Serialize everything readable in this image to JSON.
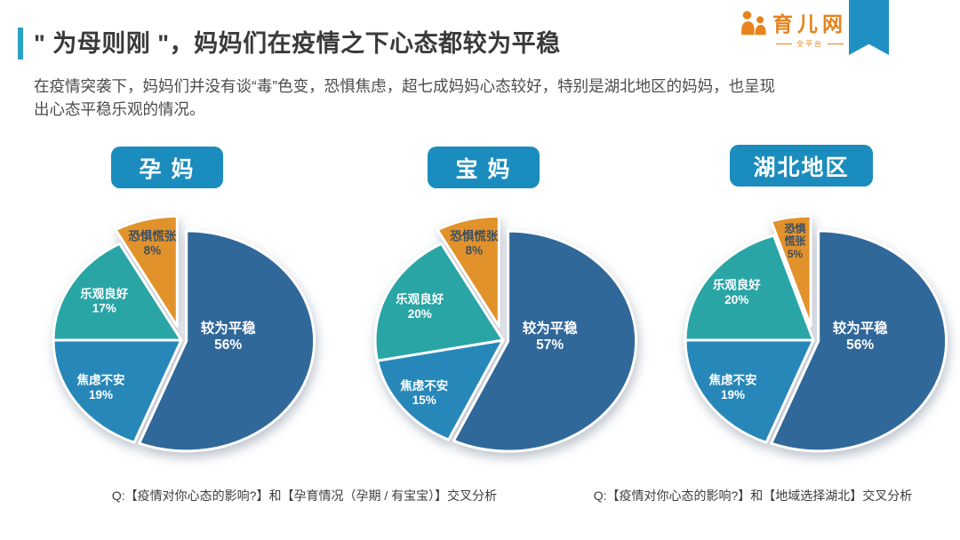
{
  "header": {
    "title": "\" 为母则刚 \"，妈妈们在疫情之下心态都较为平稳",
    "subtitle_line1": "在疫情突袭下，妈妈们并没有谈“毒”色变，恐惧焦虑，超七成妈妈心态较好，特别是湖北地区的妈妈，也呈现",
    "subtitle_line2": "出心态平稳乐观的情况。",
    "accent_color": "#2BA3C4",
    "title_color": "#3A3A3A"
  },
  "logo": {
    "brand": "育儿网",
    "tagline": "全平台",
    "brand_color": "#E8821C",
    "icon": "parent-child-icon"
  },
  "ribbon": {
    "color": "#2090C2"
  },
  "style": {
    "group_label_bg": "#1B8CBE",
    "slice_stroke": "#FFFFFF"
  },
  "chart_data": [
    {
      "type": "pie",
      "group_label": "孕 妈",
      "slices": [
        {
          "label": "较为平稳",
          "value": 56,
          "pct_text": "56%",
          "color": "#31689A",
          "label_color": "#FFFFFF",
          "label_lines": [
            "较为平稳",
            "56%"
          ],
          "label_r": 0.33,
          "label_angle": 82,
          "offset": 0.04
        },
        {
          "label": "焦虑不安",
          "value": 19,
          "pct_text": "19%",
          "color": "#2787B8",
          "label_color": "#FFFFFF",
          "label_lines": [
            "焦虑不安",
            "19%"
          ],
          "label_r": 0.76
        },
        {
          "label": "乐观良好",
          "value": 17,
          "pct_text": "17%",
          "color": "#29A5A6",
          "label_color": "#FFFFFF",
          "label_lines": [
            "乐观良好",
            "17%"
          ],
          "label_r": 0.7
        },
        {
          "label": "恐惧慌张",
          "value": 8,
          "pct_text": "8%",
          "color": "#E2922B",
          "label_color": "#3D4F63",
          "label_lines": [
            "恐惧慌张",
            "8%"
          ],
          "label_r": 0.78,
          "exploded": true,
          "offset": 0.13
        }
      ]
    },
    {
      "type": "pie",
      "group_label": "宝 妈",
      "slices": [
        {
          "label": "较为平稳",
          "value": 57,
          "pct_text": "57%",
          "color": "#31689A",
          "label_color": "#FFFFFF",
          "label_lines": [
            "较为平稳",
            "57%"
          ],
          "label_r": 0.33,
          "label_angle": 82,
          "offset": 0.04
        },
        {
          "label": "焦虑不安",
          "value": 15,
          "pct_text": "15%",
          "color": "#2787B8",
          "label_color": "#FFFFFF",
          "label_lines": [
            "焦虑不安",
            "15%"
          ],
          "label_r": 0.78
        },
        {
          "label": "乐观良好",
          "value": 20,
          "pct_text": "20%",
          "color": "#29A5A6",
          "label_color": "#FFFFFF",
          "label_lines": [
            "乐观良好",
            "20%"
          ],
          "label_r": 0.72
        },
        {
          "label": "恐惧慌张",
          "value": 8,
          "pct_text": "8%",
          "color": "#E2922B",
          "label_color": "#3D4F63",
          "label_lines": [
            "恐惧慌张",
            "8%"
          ],
          "label_r": 0.78,
          "exploded": true,
          "offset": 0.13
        }
      ]
    },
    {
      "type": "pie",
      "group_label": "湖北地区",
      "slices": [
        {
          "label": "较为平稳",
          "value": 56,
          "pct_text": "56%",
          "color": "#31689A",
          "label_color": "#FFFFFF",
          "label_lines": [
            "较为平稳",
            "56%"
          ],
          "label_r": 0.33,
          "label_angle": 82,
          "offset": 0.04
        },
        {
          "label": "焦虑不安",
          "value": 19,
          "pct_text": "19%",
          "color": "#2787B8",
          "label_color": "#FFFFFF",
          "label_lines": [
            "焦虑不安",
            "19%"
          ],
          "label_r": 0.76
        },
        {
          "label": "乐观良好",
          "value": 20,
          "pct_text": "20%",
          "color": "#29A5A6",
          "label_color": "#FFFFFF",
          "label_lines": [
            "乐观良好",
            "20%"
          ],
          "label_r": 0.74
        },
        {
          "label": "恐惧慌张",
          "value": 5,
          "pct_text": "5%",
          "color": "#E2922B",
          "label_color": "#3D4F63",
          "label_lines": [
            "恐惧",
            "慌张",
            "5%"
          ],
          "label_r": 0.78,
          "exploded": true,
          "offset": 0.13
        }
      ]
    }
  ],
  "captions": {
    "left": "Q:【疫情对你心态的影响?】和【孕育情况（孕期 / 有宝宝）】交叉分析",
    "right": "Q:【疫情对你心态的影响?】和【地域选择湖北】交叉分析"
  }
}
